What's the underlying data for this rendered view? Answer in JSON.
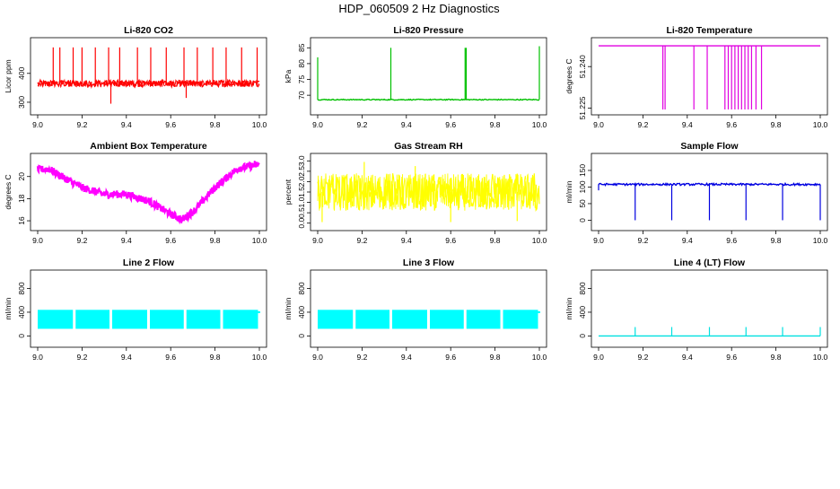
{
  "page_title": "HDP_060509 2 Hz Diagnostics",
  "chart_data": [
    {
      "type": "line",
      "title": "Li-820 CO2",
      "ylabel": "Licor ppm",
      "xlabel": "",
      "xlim": [
        9.0,
        10.0
      ],
      "ylim": [
        275,
        505
      ],
      "x_ticks": [
        9.0,
        9.2,
        9.4,
        9.6,
        9.8,
        10.0
      ],
      "x_tick_labels": [
        "9.0",
        "9.2",
        "9.4",
        "9.6",
        "9.8",
        "10.0"
      ],
      "y_ticks": [
        300,
        400
      ],
      "y_tick_labels": [
        "300",
        "400"
      ],
      "series": [
        {
          "name": "CO2",
          "color": "#ff0000",
          "pattern": "noisy",
          "baseline": 365,
          "noise": 12,
          "spikes": [
            {
              "x": 9.07,
              "y": 490
            },
            {
              "x": 9.1,
              "y": 490
            },
            {
              "x": 9.16,
              "y": 490
            },
            {
              "x": 9.2,
              "y": 490
            },
            {
              "x": 9.26,
              "y": 490
            },
            {
              "x": 9.32,
              "y": 490
            },
            {
              "x": 9.33,
              "y": 295
            },
            {
              "x": 9.37,
              "y": 490
            },
            {
              "x": 9.45,
              "y": 490
            },
            {
              "x": 9.51,
              "y": 490
            },
            {
              "x": 9.58,
              "y": 490
            },
            {
              "x": 9.66,
              "y": 490
            },
            {
              "x": 9.67,
              "y": 315
            },
            {
              "x": 9.72,
              "y": 490
            },
            {
              "x": 9.79,
              "y": 490
            },
            {
              "x": 9.85,
              "y": 490
            },
            {
              "x": 9.92,
              "y": 490
            },
            {
              "x": 9.99,
              "y": 490
            }
          ]
        }
      ]
    },
    {
      "type": "line",
      "title": "Li-820 Pressure",
      "ylabel": "kPa",
      "xlabel": "",
      "xlim": [
        9.0,
        10.0
      ],
      "ylim": [
        65.5,
        86.5
      ],
      "x_ticks": [
        9.0,
        9.2,
        9.4,
        9.6,
        9.8,
        10.0
      ],
      "x_tick_labels": [
        "9.0",
        "9.2",
        "9.4",
        "9.6",
        "9.8",
        "10.0"
      ],
      "y_ticks": [
        70,
        75,
        80,
        85
      ],
      "y_tick_labels": [
        "70",
        "75",
        "80",
        "85"
      ],
      "series": [
        {
          "name": "Pressure",
          "color": "#00c000",
          "pattern": "flat",
          "baseline": 68.6,
          "noise": 0.15,
          "spikes": [
            {
              "x": 9.0,
              "y": 82
            },
            {
              "x": 9.33,
              "y": 85
            },
            {
              "x": 9.665,
              "y": 85
            },
            {
              "x": 9.67,
              "y": 85
            },
            {
              "x": 10.0,
              "y": 85.5
            }
          ]
        }
      ]
    },
    {
      "type": "line",
      "title": "Li-820 Temperature",
      "ylabel": "degrees C",
      "xlabel": "",
      "xlim": [
        9.0,
        10.0
      ],
      "ylim": [
        51.2245,
        51.2485
      ],
      "x_ticks": [
        9.0,
        9.2,
        9.4,
        9.6,
        9.8,
        10.0
      ],
      "x_tick_labels": [
        "9.0",
        "9.2",
        "9.4",
        "9.6",
        "9.8",
        "10.0"
      ],
      "y_ticks": [
        51.225,
        51.24
      ],
      "y_tick_labels": [
        "51.225",
        "51.240"
      ],
      "series": [
        {
          "name": "Temperature",
          "color": "#e000e0",
          "pattern": "flat",
          "baseline": 51.2475,
          "noise": 0.0,
          "spikes": [
            {
              "x": 9.29,
              "y": 51.2245
            },
            {
              "x": 9.3,
              "y": 51.2245
            },
            {
              "x": 9.43,
              "y": 51.2245
            },
            {
              "x": 9.49,
              "y": 51.2245
            },
            {
              "x": 9.57,
              "y": 51.2245
            },
            {
              "x": 9.585,
              "y": 51.2245
            },
            {
              "x": 9.6,
              "y": 51.2245
            },
            {
              "x": 9.615,
              "y": 51.2245
            },
            {
              "x": 9.63,
              "y": 51.2245
            },
            {
              "x": 9.645,
              "y": 51.2245
            },
            {
              "x": 9.66,
              "y": 51.2245
            },
            {
              "x": 9.675,
              "y": 51.2245
            },
            {
              "x": 9.69,
              "y": 51.2245
            },
            {
              "x": 9.71,
              "y": 51.2245
            },
            {
              "x": 9.735,
              "y": 51.2245
            }
          ]
        }
      ]
    },
    {
      "type": "line",
      "title": "Ambient Box Temperature",
      "ylabel": "degrees C",
      "xlabel": "",
      "xlim": [
        9.0,
        10.0
      ],
      "ylim": [
        15.6,
        21.6
      ],
      "x_ticks": [
        9.0,
        9.2,
        9.4,
        9.6,
        9.8,
        10.0
      ],
      "x_tick_labels": [
        "9.0",
        "9.2",
        "9.4",
        "9.6",
        "9.8",
        "10.0"
      ],
      "y_ticks": [
        16,
        18,
        20
      ],
      "y_tick_labels": [
        "16",
        "18",
        "20"
      ],
      "series": [
        {
          "name": "Box Temperature",
          "color": "#ff00ff",
          "pattern": "band",
          "band_halfwidth": 0.35,
          "curve": [
            {
              "x": 9.0,
              "y": 20.6
            },
            {
              "x": 9.05,
              "y": 20.7
            },
            {
              "x": 9.1,
              "y": 20.1
            },
            {
              "x": 9.2,
              "y": 19.0
            },
            {
              "x": 9.3,
              "y": 18.4
            },
            {
              "x": 9.4,
              "y": 18.4
            },
            {
              "x": 9.5,
              "y": 17.8
            },
            {
              "x": 9.6,
              "y": 16.6
            },
            {
              "x": 9.65,
              "y": 16.1
            },
            {
              "x": 9.7,
              "y": 16.8
            },
            {
              "x": 9.8,
              "y": 19.0
            },
            {
              "x": 9.9,
              "y": 20.7
            },
            {
              "x": 10.0,
              "y": 21.1
            }
          ]
        }
      ]
    },
    {
      "type": "line",
      "title": "Gas Stream RH",
      "ylabel": "percent",
      "xlabel": "",
      "xlim": [
        9.0,
        10.0
      ],
      "ylim": [
        -0.1,
        3.1
      ],
      "x_ticks": [
        9.0,
        9.2,
        9.4,
        9.6,
        9.8,
        10.0
      ],
      "x_tick_labels": [
        "9.0",
        "9.2",
        "9.4",
        "9.6",
        "9.8",
        "10.0"
      ],
      "y_ticks": [
        0.0,
        0.5,
        1.0,
        1.5,
        2.0,
        2.5,
        3.0
      ],
      "y_tick_labels": [
        "0.0",
        "0.5",
        "1.0",
        "1.5",
        "2.0",
        "2.5",
        "3.0"
      ],
      "series": [
        {
          "name": "RH",
          "color": "#ffff00",
          "pattern": "noisy",
          "baseline": 1.5,
          "noise": 0.9,
          "spikes": [
            {
              "x": 9.21,
              "y": 2.95
            },
            {
              "x": 9.02,
              "y": 0.05
            },
            {
              "x": 9.6,
              "y": 0.05
            },
            {
              "x": 9.9,
              "y": 0.1
            },
            {
              "x": 9.44,
              "y": 2.75
            }
          ]
        }
      ]
    },
    {
      "type": "line",
      "title": "Sample Flow",
      "ylabel": "ml/min",
      "xlabel": "",
      "xlim": [
        9.0,
        10.0
      ],
      "ylim": [
        -15,
        185
      ],
      "x_ticks": [
        9.0,
        9.2,
        9.4,
        9.6,
        9.8,
        10.0
      ],
      "x_tick_labels": [
        "9.0",
        "9.2",
        "9.4",
        "9.6",
        "9.8",
        "10.0"
      ],
      "y_ticks": [
        0,
        50,
        100,
        150
      ],
      "y_tick_labels": [
        "0",
        "50",
        "100",
        "150"
      ],
      "series": [
        {
          "name": "Sample Flow",
          "color": "#0000e0",
          "pattern": "flat",
          "baseline": 108,
          "noise": 3,
          "spikes": [
            {
              "x": 9.0,
              "y": 90
            },
            {
              "x": 9.165,
              "y": 0
            },
            {
              "x": 9.33,
              "y": 0
            },
            {
              "x": 9.5,
              "y": 0
            },
            {
              "x": 9.665,
              "y": 0
            },
            {
              "x": 9.83,
              "y": 0
            },
            {
              "x": 10.0,
              "y": 0
            }
          ]
        }
      ]
    },
    {
      "type": "line",
      "title": "Line 2 Flow",
      "ylabel": "ml/min",
      "xlabel": "",
      "xlim": [
        9.0,
        10.0
      ],
      "ylim": [
        -100,
        1020
      ],
      "x_ticks": [
        9.0,
        9.2,
        9.4,
        9.6,
        9.8,
        10.0
      ],
      "x_tick_labels": [
        "9.0",
        "9.2",
        "9.4",
        "9.6",
        "9.8",
        "10.0"
      ],
      "y_ticks": [
        0,
        400,
        800
      ],
      "y_tick_labels": [
        "0",
        "400",
        "800"
      ],
      "series": [
        {
          "name": "Line 2",
          "color": "#00ffff",
          "pattern": "blocks",
          "low": 120,
          "high": 440,
          "gaps": [
            9.165,
            9.33,
            9.5,
            9.665,
            9.83
          ],
          "tail": {
            "x": 10.0,
            "y": 400
          }
        }
      ]
    },
    {
      "type": "line",
      "title": "Line 3 Flow",
      "ylabel": "ml/min",
      "xlabel": "",
      "xlim": [
        9.0,
        10.0
      ],
      "ylim": [
        -100,
        1020
      ],
      "x_ticks": [
        9.0,
        9.2,
        9.4,
        9.6,
        9.8,
        10.0
      ],
      "x_tick_labels": [
        "9.0",
        "9.2",
        "9.4",
        "9.6",
        "9.8",
        "10.0"
      ],
      "y_ticks": [
        0,
        400,
        800
      ],
      "y_tick_labels": [
        "0",
        "400",
        "800"
      ],
      "series": [
        {
          "name": "Line 3",
          "color": "#00ffff",
          "pattern": "blocks",
          "low": 120,
          "high": 440,
          "gaps": [
            9.165,
            9.33,
            9.5,
            9.665,
            9.83
          ],
          "tail": {
            "x": 10.0,
            "y": 400
          }
        }
      ]
    },
    {
      "type": "line",
      "title": "Line 4 (LT) Flow",
      "ylabel": "ml/min",
      "xlabel": "",
      "xlim": [
        9.0,
        10.0
      ],
      "ylim": [
        -100,
        1020
      ],
      "x_ticks": [
        9.0,
        9.2,
        9.4,
        9.6,
        9.8,
        10.0
      ],
      "x_tick_labels": [
        "9.0",
        "9.2",
        "9.4",
        "9.6",
        "9.8",
        "10.0"
      ],
      "y_ticks": [
        0,
        400,
        800
      ],
      "y_tick_labels": [
        "0",
        "400",
        "800"
      ],
      "series": [
        {
          "name": "Line 4",
          "color": "#00e0e0",
          "pattern": "flat",
          "baseline": 0,
          "noise": 0,
          "spikes": [
            {
              "x": 9.165,
              "y": 150
            },
            {
              "x": 9.33,
              "y": 150
            },
            {
              "x": 9.5,
              "y": 150
            },
            {
              "x": 9.665,
              "y": 150
            },
            {
              "x": 9.83,
              "y": 150
            },
            {
              "x": 10.0,
              "y": 150
            }
          ]
        }
      ]
    }
  ]
}
